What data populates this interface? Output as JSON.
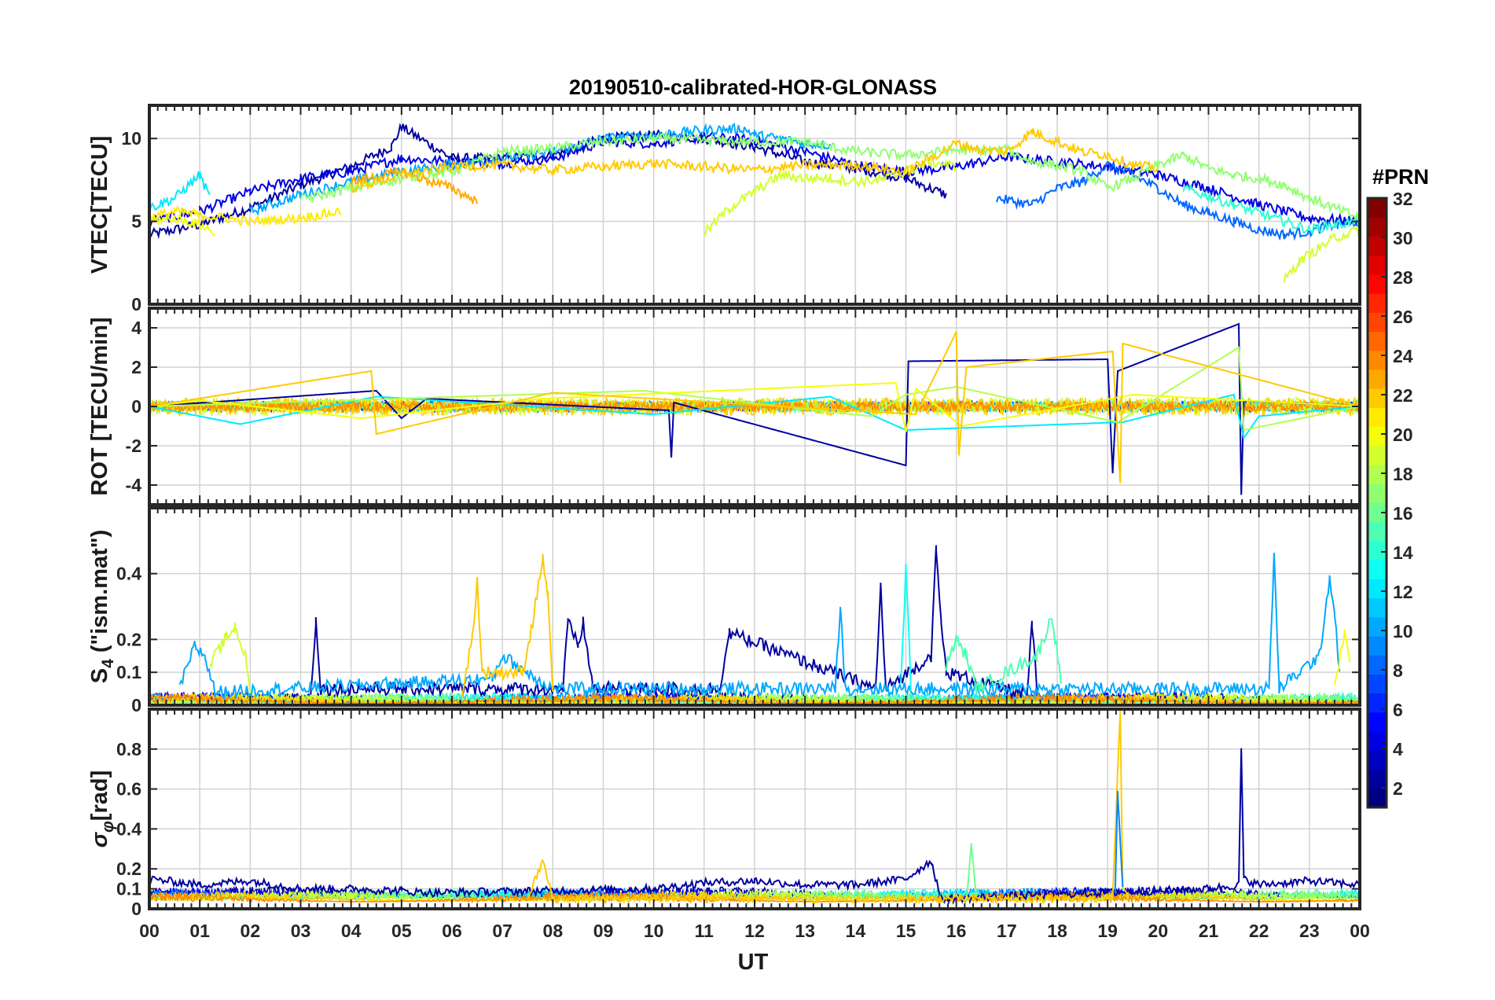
{
  "chart_data": {
    "type": "line",
    "title": "20190510-calibrated-HOR-GLONASS",
    "xlabel": "UT",
    "x_ticks": [
      "00",
      "01",
      "02",
      "03",
      "04",
      "05",
      "06",
      "07",
      "08",
      "09",
      "10",
      "11",
      "12",
      "13",
      "14",
      "15",
      "16",
      "17",
      "18",
      "19",
      "20",
      "21",
      "22",
      "23",
      "00"
    ],
    "xlim_hours": [
      0,
      24
    ],
    "grid": true,
    "colormap": "jet",
    "colorbar": {
      "title": "#PRN",
      "range": [
        1,
        32
      ],
      "ticks": [
        "2",
        "4",
        "6",
        "8",
        "10",
        "12",
        "14",
        "16",
        "18",
        "20",
        "22",
        "24",
        "26",
        "28",
        "30",
        "32"
      ]
    },
    "panels": [
      {
        "ylabel": "VTEC[TECU]",
        "ylim": [
          0,
          12
        ],
        "yticks": [
          0,
          5,
          10
        ],
        "yticklabels": [
          "0",
          "5",
          "10"
        ],
        "series": [
          {
            "prn": 2,
            "x": [
              0,
              1,
              2,
              3,
              4,
              4.8,
              5,
              6,
              7,
              8,
              9,
              10,
              11,
              12,
              13,
              14,
              15,
              15.8
            ],
            "y": [
              4.2,
              4.8,
              5.8,
              7.2,
              8.3,
              9.5,
              10.7,
              8.8,
              8.8,
              9.0,
              10.0,
              10.2,
              10.0,
              9.5,
              8.6,
              8.2,
              7.6,
              6.6
            ]
          },
          {
            "prn": 4,
            "x": [
              0,
              1,
              2,
              3,
              4,
              5,
              6,
              7,
              8,
              9,
              10,
              11,
              12,
              13,
              14,
              15,
              16,
              17,
              18,
              19,
              20,
              21,
              22,
              23,
              24
            ],
            "y": [
              5.0,
              5.6,
              6.8,
              7.6,
              8.0,
              8.8,
              8.6,
              8.5,
              8.8,
              9.8,
              9.7,
              10.1,
              9.9,
              9.2,
              8.4,
              8.0,
              8.3,
              8.9,
              8.6,
              8.3,
              7.8,
              7.0,
              6.0,
              5.2,
              5.0
            ]
          },
          {
            "prn": 8,
            "x": [
              16.8,
              17.5,
              18,
              18.5,
              19,
              19.5,
              20,
              20.5,
              21,
              21.5,
              22,
              22.5,
              23,
              23.5,
              24
            ],
            "y": [
              6.4,
              6.0,
              7.0,
              7.4,
              8.4,
              7.8,
              7.0,
              6.0,
              5.5,
              5.0,
              4.5,
              4.2,
              4.4,
              4.8,
              5.0
            ]
          },
          {
            "prn": 10,
            "x": [
              2,
              3,
              4,
              5,
              6,
              7,
              8,
              9,
              10,
              11,
              11.8,
              12,
              12.5,
              13,
              13.5
            ],
            "y": [
              5.6,
              6.6,
              7.4,
              8.0,
              8.4,
              8.8,
              9.2,
              10.0,
              10.2,
              10.5,
              10.6,
              10.2,
              10.0,
              9.7,
              9.6
            ]
          },
          {
            "prn": 12,
            "x": [
              0,
              0.5,
              1,
              1.2
            ],
            "y": [
              5.8,
              6.4,
              7.8,
              6.4
            ]
          },
          {
            "prn": 14,
            "x": [
              20.5,
              21,
              21.5,
              22,
              22.5,
              23,
              23.5,
              24
            ],
            "y": [
              7.0,
              6.5,
              6.0,
              5.5,
              5.0,
              4.5,
              4.8,
              5.0
            ]
          },
          {
            "prn": 17,
            "x": [
              3,
              4,
              5,
              6,
              7,
              8,
              9,
              10,
              11,
              12,
              13,
              14,
              15,
              16,
              17,
              17.5,
              18,
              18.5,
              19,
              19.5,
              20,
              20.5,
              21,
              21.5,
              22,
              22.5,
              23,
              23.5,
              24
            ],
            "y": [
              6.3,
              7.0,
              7.6,
              8.0,
              9.2,
              9.4,
              9.8,
              10.0,
              9.9,
              9.8,
              9.8,
              9.2,
              9.0,
              9.3,
              9.3,
              8.6,
              8.4,
              8.0,
              7.0,
              7.6,
              8.4,
              9.0,
              8.2,
              7.8,
              7.6,
              7.2,
              6.4,
              5.8,
              5.2
            ]
          },
          {
            "prn": 20,
            "x": [
              0,
              0.5,
              1,
              1.3
            ],
            "y": [
              5.0,
              5.2,
              4.8,
              4.3
            ]
          },
          {
            "prn": 21,
            "x": [
              0,
              0.5,
              1,
              2,
              3,
              3.8
            ],
            "y": [
              5.2,
              5.6,
              5.4,
              5.0,
              5.2,
              5.6
            ]
          },
          {
            "prn": 19,
            "x": [
              11,
              11.5,
              12,
              12.5,
              13,
              13.5,
              14,
              14.5,
              15,
              15.5,
              16
            ],
            "y": [
              4.3,
              5.8,
              6.8,
              7.8,
              7.6,
              7.6,
              7.4,
              7.5,
              8.0,
              8.6,
              8.3
            ]
          },
          {
            "prn": 23,
            "x": [
              4,
              5,
              6,
              6.5
            ],
            "y": [
              7.4,
              8.0,
              7.0,
              6.2
            ]
          },
          {
            "prn": 22,
            "x": [
              4,
              5,
              6,
              7,
              8,
              9,
              10,
              11,
              12,
              13,
              14,
              15,
              16,
              16.5,
              17,
              17.5,
              18,
              18.5,
              19,
              19.5,
              20
            ],
            "y": [
              7.0,
              7.8,
              8.3,
              8.4,
              8.1,
              8.3,
              8.5,
              8.3,
              8.1,
              8.4,
              8.4,
              8.0,
              9.7,
              9.3,
              9.2,
              10.4,
              9.8,
              9.2,
              9.0,
              8.4,
              8.2
            ]
          },
          {
            "prn": 19,
            "x": [
              22.5,
              22.8,
              23,
              23.5,
              24
            ],
            "y": [
              1.4,
              2.6,
              3.0,
              4.0,
              4.5
            ]
          }
        ]
      },
      {
        "ylabel": "ROT [TECU/min]",
        "ylim": [
          -5,
          5
        ],
        "yticks": [
          -4,
          -2,
          0,
          2,
          4
        ],
        "yticklabels": [
          "-4",
          "-2",
          "0",
          "2",
          "4"
        ],
        "series": [
          {
            "prn": 2,
            "x": [
              0,
              4.5,
              5.0,
              5.5,
              10.3,
              10.35,
              10.4,
              15.0,
              15.05,
              19.0,
              19.1,
              19.2,
              21.6,
              21.65,
              21.7,
              24
            ],
            "y": [
              0,
              0.8,
              -0.6,
              0.4,
              -0.2,
              -2.6,
              0.2,
              -3.0,
              2.3,
              2.4,
              -3.4,
              1.8,
              4.2,
              -4.5,
              0.3,
              0
            ]
          },
          {
            "prn": 12,
            "x": [
              0,
              1.8,
              4.5,
              10.0,
              13.5,
              15.0,
              19.3,
              21.5,
              21.7,
              22.0,
              24
            ],
            "y": [
              0,
              -0.9,
              0.5,
              -0.4,
              0.5,
              -1.2,
              -0.8,
              0.6,
              -1.6,
              -0.5,
              0
            ]
          },
          {
            "prn": 18,
            "x": [
              0,
              5.0,
              9.8,
              14.3,
              15.0,
              16.0,
              19.2,
              21.6,
              21.7,
              24
            ],
            "y": [
              0,
              0.4,
              0.8,
              -0.5,
              0.6,
              1.0,
              -0.8,
              3.0,
              -1.2,
              0
            ]
          },
          {
            "prn": 20,
            "x": [
              0,
              1.0,
              4.2,
              7.8,
              14.8,
              15.0,
              15.2,
              16.1,
              19.5,
              24
            ],
            "y": [
              0,
              0.3,
              -0.6,
              0.4,
              1.2,
              -1.3,
              0.9,
              -1.0,
              0.6,
              0
            ]
          },
          {
            "prn": 22,
            "x": [
              0,
              4.4,
              4.5,
              8.0,
              15.2,
              16.0,
              16.05,
              16.2,
              19.1,
              19.25,
              19.3,
              24
            ],
            "y": [
              0,
              1.8,
              -1.4,
              0.7,
              -0.4,
              3.8,
              -2.5,
              2.0,
              2.8,
              -3.9,
              3.2,
              0
            ]
          }
        ]
      },
      {
        "ylabel": "S4 (\"ism.mat\")",
        "ylabel_main": "S",
        "ylabel_sub": "4",
        "ylabel_rest": " (\"ism.mat\")",
        "ylim": [
          0,
          0.6
        ],
        "yticks": [
          0,
          0.1,
          0.2,
          0.4
        ],
        "yticklabels": [
          "0",
          "0.1",
          "0.2",
          "0.4"
        ],
        "series": [
          {
            "prn": 2,
            "x": [
              3.2,
              3.3,
              3.4,
              8.2,
              8.3,
              8.5,
              8.6,
              8.8,
              11.3,
              11.5,
              14.4,
              14.5,
              14.6,
              15.5,
              15.6,
              15.7,
              15.8,
              17.4,
              17.5,
              17.6
            ],
            "y": [
              0.02,
              0.26,
              0.05,
              0.05,
              0.25,
              0.18,
              0.25,
              0.05,
              0.05,
              0.22,
              0.05,
              0.36,
              0.05,
              0.15,
              0.47,
              0.25,
              0.1,
              0.03,
              0.24,
              0.05
            ]
          },
          {
            "prn": 10,
            "x": [
              0.6,
              0.9,
              1.1,
              1.3,
              6.8,
              7.0,
              7.5,
              8.0,
              13.6,
              13.7,
              13.8,
              22.2,
              22.3,
              22.4,
              23.2,
              23.4,
              23.5,
              23.6
            ],
            "y": [
              0.05,
              0.18,
              0.15,
              0.04,
              0.08,
              0.15,
              0.1,
              0.05,
              0.05,
              0.3,
              0.05,
              0.05,
              0.46,
              0.05,
              0.15,
              0.39,
              0.28,
              0.1
            ]
          },
          {
            "prn": 13,
            "x": [
              14.9,
              15.0,
              15.1
            ],
            "y": [
              0.05,
              0.42,
              0.05
            ]
          },
          {
            "prn": 15,
            "x": [
              15.8,
              16.0,
              16.2,
              16.4,
              17.6,
              17.9,
              18.1
            ],
            "y": [
              0.12,
              0.2,
              0.15,
              0.05,
              0.15,
              0.27,
              0.05
            ]
          },
          {
            "prn": 19,
            "x": [
              1.2,
              1.5,
              1.7,
              1.9,
              2.0
            ],
            "y": [
              0.12,
              0.2,
              0.24,
              0.15,
              0.05
            ]
          },
          {
            "prn": 20,
            "x": [
              23.5,
              23.7,
              23.8
            ],
            "y": [
              0.05,
              0.23,
              0.12
            ]
          },
          {
            "prn": 22,
            "x": [
              6.2,
              6.4,
              6.5,
              6.6,
              7.4,
              7.6,
              7.8,
              7.9,
              8.0
            ],
            "y": [
              0.04,
              0.2,
              0.38,
              0.1,
              0.1,
              0.25,
              0.45,
              0.33,
              0.05
            ]
          }
        ]
      },
      {
        "ylabel": "σφ[rad]",
        "ylabel_main": "σ",
        "ylabel_sub": "φ",
        "ylabel_rest": "[rad]",
        "ylim": [
          0,
          1
        ],
        "yticks": [
          0,
          0.1,
          0.2,
          0.4,
          0.6,
          0.8
        ],
        "yticklabels": [
          "0",
          "0.1",
          "0.2",
          "0.4",
          "0.6",
          "0.8"
        ],
        "series": [
          {
            "prn": 2,
            "x": [
              0,
              1,
              2,
              3,
              4,
              5,
              5.5,
              10,
              11,
              12,
              13,
              14,
              15,
              15.5,
              15.7,
              21,
              21.6,
              21.65,
              21.7,
              22,
              23,
              24
            ],
            "y": [
              0.15,
              0.12,
              0.14,
              0.1,
              0.1,
              0.09,
              0.08,
              0.1,
              0.13,
              0.14,
              0.12,
              0.12,
              0.15,
              0.24,
              0.05,
              0.1,
              0.12,
              0.8,
              0.15,
              0.12,
              0.14,
              0.12
            ]
          },
          {
            "prn": 16,
            "x": [
              16.2,
              16.3,
              16.4
            ],
            "y": [
              0.05,
              0.31,
              0.05
            ]
          },
          {
            "prn": 22,
            "x": [
              7.5,
              7.8,
              8.0,
              19.1,
              19.2,
              19.25,
              19.3,
              19.4
            ],
            "y": [
              0.05,
              0.24,
              0.05,
              0.05,
              0.7,
              0.99,
              0.1,
              0.05
            ]
          },
          {
            "prn": 9,
            "x": [
              19.15,
              19.2,
              19.3
            ],
            "y": [
              0.1,
              0.57,
              0.1
            ]
          }
        ]
      }
    ]
  }
}
